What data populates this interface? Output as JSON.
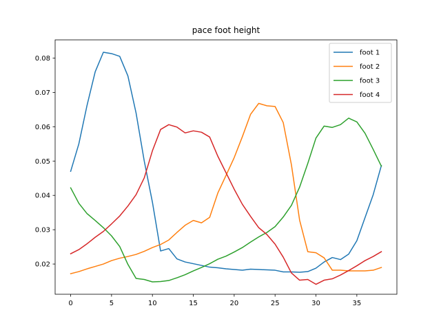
{
  "chart_data": {
    "type": "line",
    "title": "pace foot height",
    "xlabel": "",
    "ylabel": "",
    "xlim": [
      -1.9,
      39.9
    ],
    "ylim": [
      0.0112,
      0.0853
    ],
    "xticks": [
      0,
      5,
      10,
      15,
      20,
      25,
      30,
      35
    ],
    "yticks": [
      0.02,
      0.03,
      0.04,
      0.05,
      0.06,
      0.07,
      0.08
    ],
    "grid": false,
    "legend_position": "top-right",
    "x": [
      0,
      1,
      2,
      3,
      4,
      5,
      6,
      7,
      8,
      9,
      10,
      11,
      12,
      13,
      14,
      15,
      16,
      17,
      18,
      19,
      20,
      21,
      22,
      23,
      24,
      25,
      26,
      27,
      28,
      29,
      30,
      31,
      32,
      33,
      34,
      35,
      36,
      37,
      38
    ],
    "series": [
      {
        "name": "foot 1",
        "color": "#1f77b4",
        "values": [
          0.047,
          0.055,
          0.0662,
          0.076,
          0.0817,
          0.0813,
          0.0805,
          0.0748,
          0.064,
          0.05,
          0.038,
          0.0238,
          0.0245,
          0.0215,
          0.0206,
          0.0201,
          0.0196,
          0.0191,
          0.0189,
          0.0186,
          0.0184,
          0.0182,
          0.0185,
          0.0184,
          0.0183,
          0.0182,
          0.0177,
          0.0177,
          0.0176,
          0.0178,
          0.0188,
          0.0206,
          0.0219,
          0.0213,
          0.0229,
          0.0268,
          0.0335,
          0.0402,
          0.0487
        ]
      },
      {
        "name": "foot 2",
        "color": "#ff7f0e",
        "values": [
          0.0172,
          0.0178,
          0.0186,
          0.0193,
          0.02,
          0.021,
          0.0217,
          0.0222,
          0.0228,
          0.0237,
          0.0248,
          0.0257,
          0.027,
          0.0292,
          0.0313,
          0.0327,
          0.032,
          0.0336,
          0.0407,
          0.0458,
          0.051,
          0.0571,
          0.0636,
          0.0668,
          0.0661,
          0.0659,
          0.0612,
          0.0489,
          0.0328,
          0.0236,
          0.0233,
          0.0218,
          0.0182,
          0.0182,
          0.018,
          0.018,
          0.018,
          0.0182,
          0.019
        ]
      },
      {
        "name": "foot 3",
        "color": "#2ca02c",
        "values": [
          0.0422,
          0.0377,
          0.0347,
          0.0327,
          0.0306,
          0.0282,
          0.0251,
          0.0199,
          0.0158,
          0.0155,
          0.0148,
          0.0149,
          0.0152,
          0.016,
          0.0169,
          0.018,
          0.019,
          0.0201,
          0.0214,
          0.0223,
          0.0235,
          0.0248,
          0.0264,
          0.0279,
          0.0292,
          0.0309,
          0.0337,
          0.0371,
          0.0424,
          0.0493,
          0.0567,
          0.0602,
          0.0598,
          0.0606,
          0.0625,
          0.0614,
          0.0581,
          0.0534,
          0.0485
        ]
      },
      {
        "name": "foot 4",
        "color": "#d62728",
        "values": [
          0.023,
          0.0242,
          0.0259,
          0.0278,
          0.0295,
          0.0317,
          0.034,
          0.0369,
          0.0402,
          0.0451,
          0.053,
          0.0592,
          0.0606,
          0.0599,
          0.0582,
          0.0588,
          0.0584,
          0.057,
          0.0514,
          0.0466,
          0.0418,
          0.0374,
          0.0339,
          0.0306,
          0.0286,
          0.0258,
          0.022,
          0.0174,
          0.0153,
          0.0155,
          0.0141,
          0.0153,
          0.0157,
          0.0168,
          0.0181,
          0.0195,
          0.021,
          0.0222,
          0.0236
        ]
      }
    ]
  }
}
